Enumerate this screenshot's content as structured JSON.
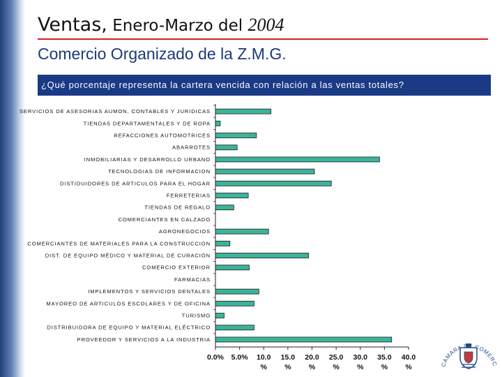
{
  "slide": {
    "title_part1": "Ventas,",
    "title_part2": " Enero-Marzo del ",
    "title_part3": "2004",
    "subtitle": "Comercio Organizado de la Z.M.G.",
    "question": "¿Qué porcentaje representa la cartera vencida con relación a las ventas totales?"
  },
  "colors": {
    "bar": "#3cb39a",
    "bar_edge": "#1d1d1d",
    "band": "#1f3f78",
    "rule": "#d42020",
    "question_bg": "#1a3a86",
    "subtitle": "#1c3a7a"
  },
  "seal": {
    "icon": "camara-de-comercio-seal-icon",
    "text": "CAMARA DE COMERCIO DE GUADALAJARA"
  },
  "chart_data": {
    "type": "bar",
    "orientation": "horizontal",
    "categories": [
      "SERVICIOS DE ASESORIAS AUMON, CONTABLES Y JURIDICAS",
      "TIENDAS DEPARTAMENTALES Y DE ROPA",
      "REFACCIONES AUTOMOTRICES",
      "ABARROTES",
      "INMOBILIARIAS Y DESARROLLO URBANO",
      "TECNOLOGIAS DE INFORMACION",
      "DISTIDUIDORES DE ARTICULOS PARA EL HOGAR",
      "FERRETERIAS",
      "TIENDAS DE REGALO",
      "COMERCIANTES EN CALZADO",
      "AGRONEGOCIOS",
      "COMERCIANTES DE MATERIALES PARA LA CONSTRUCCION",
      "DIST. DE EQUIPO MÉDICO Y MATERIAL DE CURACIÓN",
      "COMERCIO EXTERIOR",
      "FARMACIAS",
      "IMPLEMENTOS Y SERVICIOS DENTALES",
      "MAYOREO DE ARTICULOS ESCOLARES Y DE OFICINA",
      "TURISMO",
      "DISTRIBUIDORA DE EQUIPO Y MATERIAL ELÉCTRICO",
      "PROVEEDOR Y SERVICIOS A LA INDUSTRIA"
    ],
    "values": [
      11.5,
      1.0,
      8.5,
      4.5,
      34.0,
      20.5,
      24.0,
      6.8,
      3.8,
      0,
      11.0,
      3.0,
      19.3,
      7.0,
      0,
      9.0,
      8.0,
      1.8,
      8.0,
      36.5
    ],
    "xlim": [
      0,
      40
    ],
    "xticks": [
      0,
      5,
      10,
      15,
      20,
      25,
      30,
      35,
      40
    ],
    "xtick_labels": [
      [
        "0.0%"
      ],
      [
        "5.0%"
      ],
      [
        "10.0",
        "%"
      ],
      [
        "15.0",
        "%"
      ],
      [
        "20.0",
        "%"
      ],
      [
        "25.0",
        "%"
      ],
      [
        "30.0",
        "%"
      ],
      [
        "35.0",
        "%"
      ],
      [
        "40.0",
        "%"
      ]
    ],
    "grid": false,
    "legend": "none",
    "title": "",
    "xlabel": "",
    "ylabel": ""
  }
}
